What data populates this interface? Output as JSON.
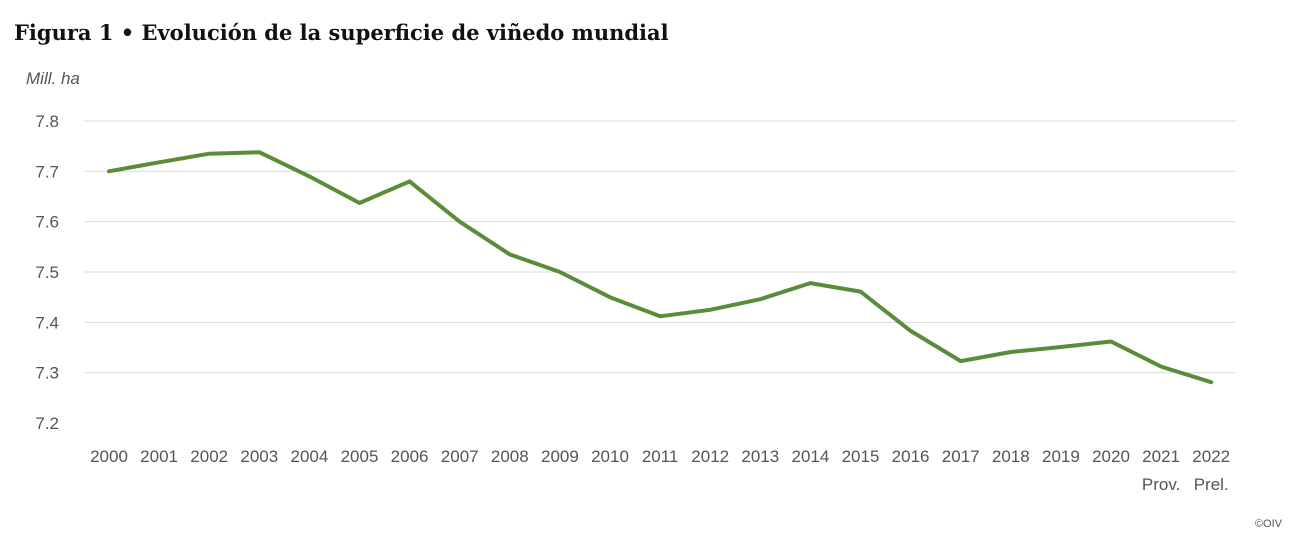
{
  "chart_data": {
    "type": "line",
    "title": "Figura 1 • Evolución de la superficie de viñedo mundial",
    "ylabel": "Mill. ha",
    "xlabel": "",
    "ylim": [
      7.2,
      7.8
    ],
    "yticks": [
      "7.8",
      "7.7",
      "7.6",
      "7.5",
      "7.4",
      "7.3",
      "7.2"
    ],
    "ytick_values": [
      7.8,
      7.7,
      7.6,
      7.5,
      7.4,
      7.3,
      7.2
    ],
    "categories": [
      "2000",
      "2001",
      "2002",
      "2003",
      "2004",
      "2005",
      "2006",
      "2007",
      "2008",
      "2009",
      "2010",
      "2011",
      "2012",
      "2013",
      "2014",
      "2015",
      "2016",
      "2017",
      "2018",
      "2019",
      "2020",
      "2021",
      "2022"
    ],
    "category_sublabels": [
      "",
      "",
      "",
      "",
      "",
      "",
      "",
      "",
      "",
      "",
      "",
      "",
      "",
      "",
      "",
      "",
      "",
      "",
      "",
      "",
      "",
      "Prov.",
      "Prel."
    ],
    "series": [
      {
        "name": "",
        "color": "#5b8c3a",
        "values": [
          7.7,
          7.718,
          7.735,
          7.738,
          7.69,
          7.637,
          7.68,
          7.6,
          7.535,
          7.5,
          7.45,
          7.412,
          7.425,
          7.446,
          7.478,
          7.461,
          7.383,
          7.323,
          7.341,
          7.351,
          7.362,
          7.312,
          7.281
        ]
      }
    ],
    "grid": true,
    "legend": "none",
    "credit": "©OIV"
  }
}
